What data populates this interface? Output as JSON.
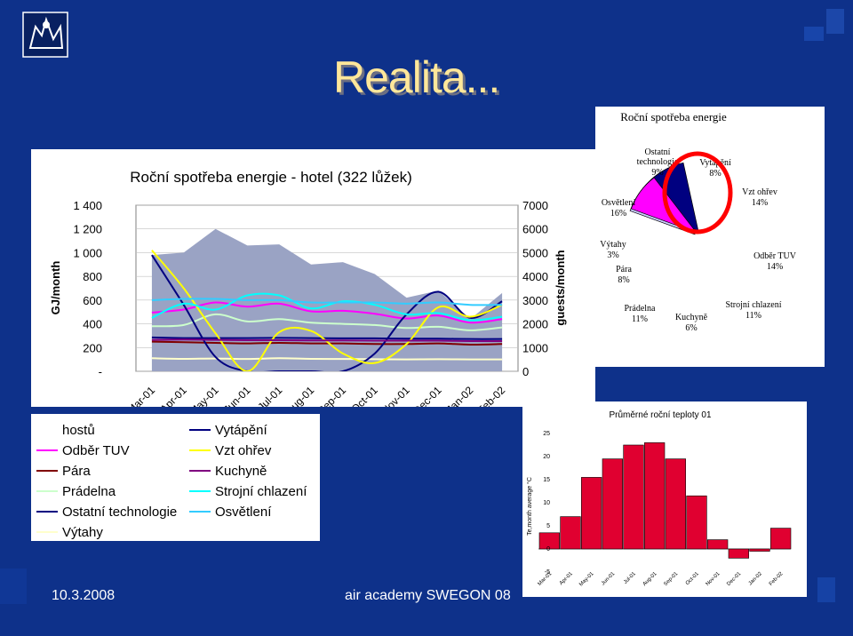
{
  "slide": {
    "title": "Realita...",
    "footer_date": "10.3.2008",
    "footer_event": "air academy SWEGON 08"
  },
  "chart_data": [
    {
      "type": "area",
      "title": "Roční spotřeba energie - hotel (322 lůžek)",
      "ylabel": "GJ/month",
      "y2label": "guests/month",
      "categories": [
        "Mar-01",
        "Apr-01",
        "May-01",
        "Jun-01",
        "Jul-01",
        "Aug-01",
        "Sep-01",
        "Oct-01",
        "Nov-01",
        "Dec-01",
        "Jan-02",
        "Feb-02"
      ],
      "ylim": [
        0,
        1400
      ],
      "y_ticks": [
        "-",
        "200",
        "400",
        "600",
        "800",
        "1 000",
        "1 200",
        "1 400"
      ],
      "y2lim": [
        0,
        7000
      ],
      "y2_ticks": [
        "0",
        "1000",
        "2000",
        "3000",
        "4000",
        "5000",
        "6000",
        "7000"
      ],
      "area_series": {
        "name": "hostů",
        "axis": "y2",
        "values": [
          4900,
          5000,
          6000,
          5300,
          5350,
          4500,
          4600,
          4100,
          3100,
          3400,
          2200,
          3300
        ]
      },
      "series": [
        {
          "name": "Odběr TUV",
          "values": [
            495,
            520,
            580,
            545,
            570,
            505,
            510,
            485,
            445,
            470,
            410,
            440
          ]
        },
        {
          "name": "Pára",
          "values": [
            250,
            245,
            240,
            235,
            240,
            235,
            235,
            230,
            230,
            235,
            225,
            230
          ]
        },
        {
          "name": "Prádelna",
          "values": [
            380,
            390,
            480,
            420,
            440,
            410,
            400,
            390,
            365,
            375,
            345,
            370
          ]
        },
        {
          "name": "Ostatní technologie",
          "values": [
            285,
            280,
            280,
            280,
            282,
            280,
            278,
            278,
            275,
            275,
            272,
            272
          ]
        },
        {
          "name": "Výtahy",
          "values": [
            110,
            105,
            108,
            104,
            110,
            105,
            104,
            102,
            100,
            102,
            100,
            100
          ]
        },
        {
          "name": "Vytápění",
          "values": [
            980,
            560,
            120,
            0,
            0,
            0,
            0,
            150,
            480,
            670,
            450,
            590
          ]
        },
        {
          "name": "Vzt ohřev",
          "values": [
            1020,
            700,
            320,
            0,
            330,
            340,
            150,
            70,
            230,
            540,
            460,
            560
          ]
        },
        {
          "name": "Kuchyně",
          "values": [
            265,
            268,
            265,
            262,
            262,
            260,
            260,
            258,
            258,
            258,
            255,
            255
          ]
        },
        {
          "name": "Strojní chlazení",
          "values": [
            450,
            570,
            520,
            640,
            640,
            530,
            590,
            560,
            480,
            490,
            430,
            460
          ]
        },
        {
          "name": "Osvětlení",
          "values": [
            600,
            610,
            610,
            600,
            600,
            580,
            580,
            580,
            570,
            580,
            560,
            560
          ]
        }
      ]
    },
    {
      "type": "pie",
      "title": "Roční spotřeba energie",
      "slices": [
        {
          "label": "Vytápění",
          "pct": "8%",
          "value": 8
        },
        {
          "label": "Vzt ohřev",
          "pct": "14%",
          "value": 14
        },
        {
          "label": "Odběr TUV",
          "pct": "14%",
          "value": 14
        },
        {
          "label": "Strojní chlazení",
          "pct": "11%",
          "value": 11
        },
        {
          "label": "Kuchyně",
          "pct": "6%",
          "value": 6
        },
        {
          "label": "Prádelna",
          "pct": "11%",
          "value": 11
        },
        {
          "label": "Pára",
          "pct": "8%",
          "value": 8
        },
        {
          "label": "Výtahy",
          "pct": "3%",
          "value": 3
        },
        {
          "label": "Osvětlení",
          "pct": "16%",
          "value": 16
        },
        {
          "label": "Ostatní technologie",
          "pct": "9%",
          "value": 9
        }
      ]
    },
    {
      "type": "bar",
      "title": "Průměrné roční teploty 01",
      "ylabel": "Te,month average °C",
      "categories": [
        "Mar-01",
        "Apr-01",
        "May-01",
        "Jun-01",
        "Jul-01",
        "Aug-01",
        "Sep-01",
        "Oct-01",
        "Nov-01",
        "Dec-01",
        "Jan-02",
        "Feb-02"
      ],
      "values": [
        3.5,
        7.0,
        15.5,
        19.5,
        22.5,
        23.0,
        19.5,
        11.5,
        2.0,
        -2.0,
        -0.5,
        4.5
      ],
      "ylim": [
        -5,
        25
      ],
      "y_ticks": [
        "-5",
        "0",
        "5",
        "10",
        "15",
        "20",
        "25"
      ]
    }
  ],
  "colors": {
    "hostu_area": "#9aa3c4",
    "Odběr TUV": "#ff00ff",
    "Pára": "#800000",
    "Prádelna": "#ccffcc",
    "Ostatní technologie": "#000080",
    "Výtahy": "#ffffcc",
    "Vytápění": "#000080",
    "Vzt ohřev": "#ffff00",
    "Kuchyně": "#800080",
    "Strojní chlazení": "#00ffff",
    "Osvětlení": "#33ccff",
    "temp_bar": "#e00030",
    "pie_Vytápění": "#9999ff",
    "pie_Vzt ohřev": "#993366",
    "pie_Odběr TUV": "#ffffcc",
    "pie_Strojní chlazení": "#ccffff",
    "pie_Kuchyně": "#660066",
    "pie_Prádelna": "#ff8080",
    "pie_Pára": "#0066cc",
    "pie_Výtahy": "#ccccff",
    "pie_Osvětlení": "#000080",
    "pie_Ostatní technologie": "#ff00ff"
  },
  "legend": {
    "col1": [
      "hostů",
      "Odběr TUV",
      "Pára",
      "Prádelna",
      "Ostatní technologie",
      "Výtahy"
    ],
    "col2": [
      "Vytápění",
      "Vzt ohřev",
      "Kuchyně",
      "Strojní chlazení",
      "Osvětlení"
    ]
  }
}
